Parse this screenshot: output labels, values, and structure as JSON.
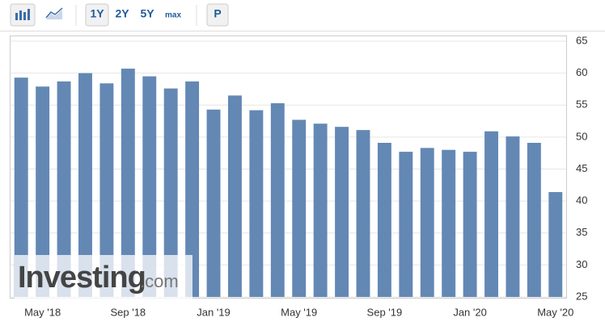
{
  "toolbar": {
    "buttons": [
      "1Y",
      "2Y",
      "5Y",
      "max"
    ],
    "extra": "P"
  },
  "watermark": {
    "brand": "Investing",
    "domain": ".com"
  },
  "chart_data": {
    "type": "bar",
    "color": "#6388b4",
    "categories": [
      null,
      "May '18",
      null,
      null,
      null,
      "Sep '18",
      null,
      null,
      null,
      "Jan '19",
      null,
      null,
      null,
      "May '19",
      null,
      null,
      null,
      "Sep '19",
      null,
      null,
      null,
      "Jan '20",
      null,
      null,
      null,
      "May '20"
    ],
    "values": [
      59.3,
      57.9,
      58.7,
      60.0,
      58.4,
      60.7,
      59.5,
      57.6,
      58.7,
      54.3,
      56.5,
      54.2,
      55.3,
      52.7,
      52.1,
      51.6,
      51.1,
      49.1,
      47.7,
      48.3,
      48.0,
      47.7,
      50.9,
      50.1,
      49.1,
      41.4
    ],
    "ylim": [
      25,
      65
    ],
    "yticks": [
      25,
      30,
      35,
      40,
      45,
      50,
      55,
      60,
      65
    ],
    "grid": true
  }
}
